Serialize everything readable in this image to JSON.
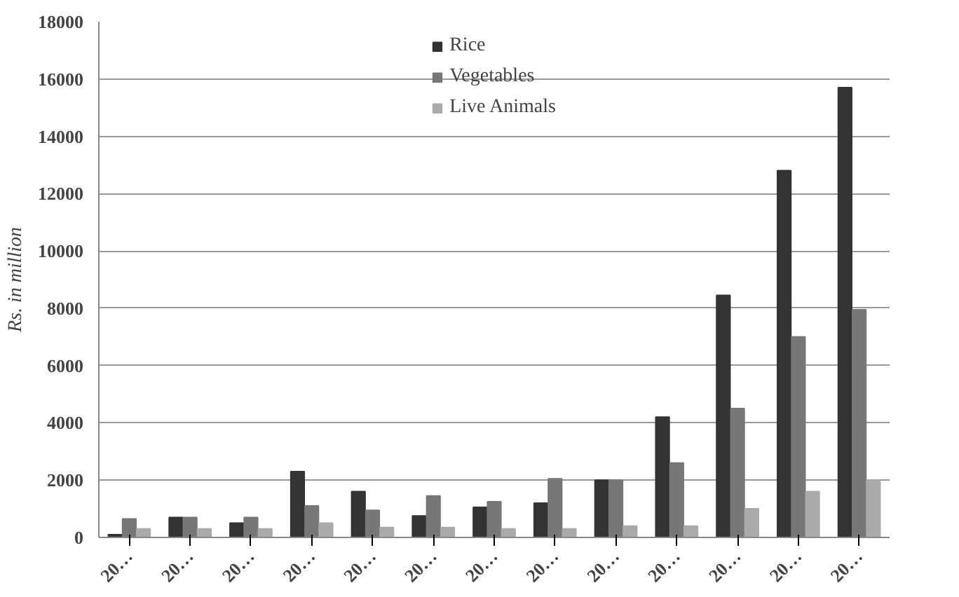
{
  "chart_data": {
    "type": "bar",
    "ylabel": "Rs. in million",
    "categories": [
      "20…",
      "20…",
      "20…",
      "20…",
      "20…",
      "20…",
      "20…",
      "20…",
      "20…",
      "20…",
      "20…",
      "20…",
      "20…"
    ],
    "series": [
      {
        "name": "Rice",
        "color": "#333333",
        "values": [
          100,
          700,
          500,
          2300,
          1600,
          750,
          1050,
          1200,
          2000,
          4200,
          8450,
          12800,
          15700
        ]
      },
      {
        "name": "Vegetables",
        "color": "#777777",
        "values": [
          650,
          700,
          700,
          1100,
          950,
          1450,
          1250,
          2050,
          2000,
          2600,
          4500,
          7000,
          7950
        ]
      },
      {
        "name": "Live Animals",
        "color": "#aaaaaa",
        "values": [
          300,
          300,
          300,
          500,
          350,
          350,
          300,
          300,
          400,
          400,
          1000,
          1600,
          2000
        ]
      }
    ],
    "ylim": [
      0,
      18000
    ],
    "yticks": [
      0,
      2000,
      4000,
      6000,
      8000,
      10000,
      12000,
      14000,
      16000,
      18000
    ],
    "grid": "y",
    "legend": "top"
  }
}
